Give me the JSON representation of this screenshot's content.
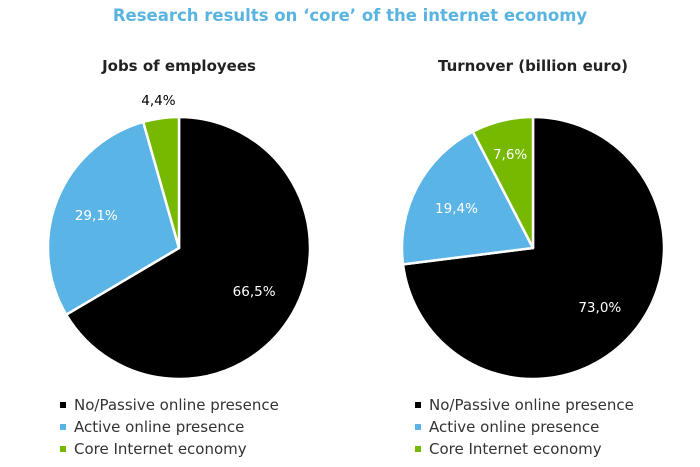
{
  "main_title": "Research results on ‘core’ of the internet economy",
  "colors": {
    "no_passive": "#000000",
    "active": "#5ab4e5",
    "core": "#76b900",
    "title": "#5ab4e0",
    "edge": "#ffffff"
  },
  "chart_data": [
    {
      "type": "pie",
      "title": "Jobs of employees",
      "slices": [
        {
          "name": "No/Passive online presence",
          "value": 66.5,
          "label": "66,5%",
          "color": "#000000"
        },
        {
          "name": "Active online presence",
          "value": 29.1,
          "label": "29,1%",
          "color": "#5ab4e5"
        },
        {
          "name": "Core Internet economy",
          "value": 4.4,
          "label": "4,4%",
          "color": "#76b900"
        }
      ],
      "legend": [
        "No/Passive online presence",
        "Active online presence",
        "Core Internet economy"
      ],
      "legend_position": "bottom"
    },
    {
      "type": "pie",
      "title": "Turnover (billion euro)",
      "slices": [
        {
          "name": "No/Passive online presence",
          "value": 73.0,
          "label": "73,0%",
          "color": "#000000"
        },
        {
          "name": "Active online presence",
          "value": 19.4,
          "label": "19,4%",
          "color": "#5ab4e5"
        },
        {
          "name": "Core Internet economy",
          "value": 7.6,
          "label": "7,6%",
          "color": "#76b900"
        }
      ],
      "legend": [
        "No/Passive online presence",
        "Active online presence",
        "Core Internet economy"
      ],
      "legend_position": "bottom"
    }
  ]
}
